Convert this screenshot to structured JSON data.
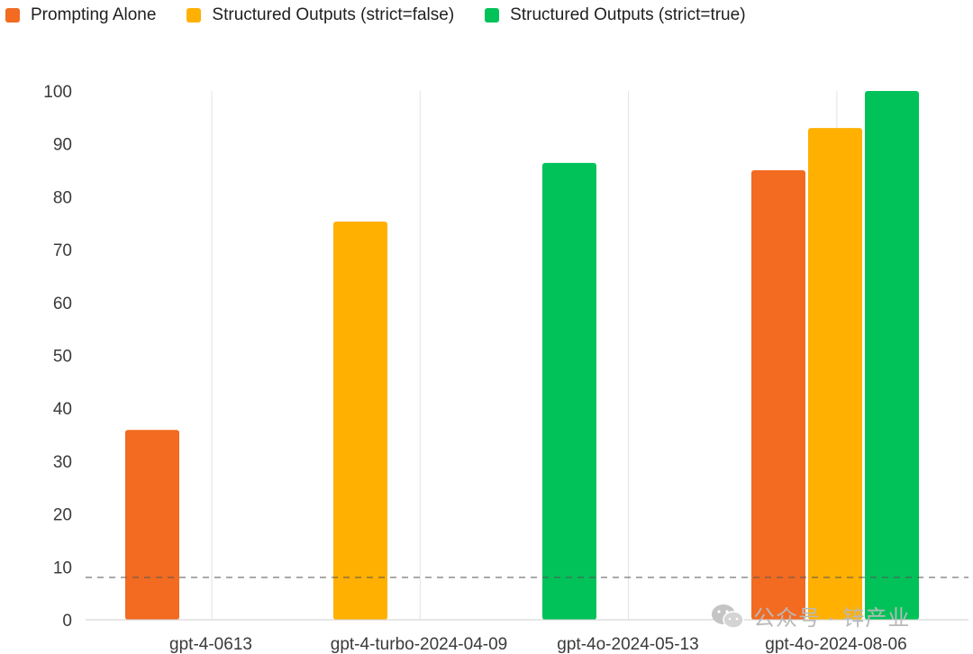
{
  "chart_data": {
    "type": "bar",
    "title": "",
    "xlabel": "",
    "ylabel": "",
    "categories": [
      "gpt-4-0613",
      "gpt-4-turbo-2024-04-09",
      "gpt-4o-2024-05-13",
      "gpt-4o-2024-08-06"
    ],
    "series": [
      {
        "name": "Prompting Alone",
        "color": "#F26B21",
        "values": [
          35.9,
          null,
          null,
          85.0
        ]
      },
      {
        "name": "Structured Outputs (strict=false)",
        "color": "#FFB000",
        "values": [
          null,
          75.3,
          null,
          93.0
        ]
      },
      {
        "name": "Structured Outputs (strict=true)",
        "color": "#00C259",
        "values": [
          null,
          null,
          86.4,
          100
        ]
      }
    ],
    "ylim": [
      0,
      100
    ],
    "yticks": [
      0,
      10,
      20,
      30,
      40,
      50,
      60,
      70,
      80,
      90,
      100
    ],
    "reference_line": 8,
    "grid": "vertical separators between categories",
    "legend_position": "top-left"
  },
  "watermark": {
    "icon": "wechat-icon",
    "text": "公众号 · 锌产业"
  }
}
